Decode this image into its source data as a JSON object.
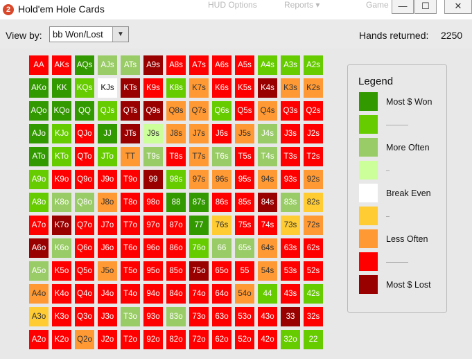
{
  "window": {
    "title": "Hold'em Hole Cards",
    "app_icon": "2",
    "icon": "pokertracker-icon",
    "bg_menu": [
      "HUD Options",
      "Reports ▾",
      "Game"
    ],
    "controls": {
      "minimize": "—",
      "maximize": "☐",
      "close": "✕"
    }
  },
  "toolbar": {
    "view_by_label": "View by:",
    "view_by_value": "bb Won/Lost",
    "dropdown_arrow": "▼",
    "hands_label": "Hands returned:",
    "hands_value": "2250"
  },
  "palette": {
    "DG": "#339900",
    "LG": "#66cc00",
    "PG": "#99cc66",
    "VPG": "#ccff99",
    "W": "#ffffff",
    "Y": "#ffcc33",
    "O": "#ff9933",
    "R": "#ff0000",
    "DR": "#990000"
  },
  "grid": {
    "rows": [
      [
        [
          "AA",
          "R"
        ],
        [
          "AKs",
          "R"
        ],
        [
          "AQs",
          "DG"
        ],
        [
          "AJs",
          "PG"
        ],
        [
          "ATs",
          "PG"
        ],
        [
          "A9s",
          "DR"
        ],
        [
          "A8s",
          "R"
        ],
        [
          "A7s",
          "R"
        ],
        [
          "A6s",
          "R"
        ],
        [
          "A5s",
          "R"
        ],
        [
          "A4s",
          "LG"
        ],
        [
          "A3s",
          "LG"
        ],
        [
          "A2s",
          "LG"
        ]
      ],
      [
        [
          "AKo",
          "DG"
        ],
        [
          "KK",
          "DG"
        ],
        [
          "KQs",
          "LG"
        ],
        [
          "KJs",
          "W"
        ],
        [
          "KTs",
          "DR"
        ],
        [
          "K9s",
          "R"
        ],
        [
          "K8s",
          "LG"
        ],
        [
          "K7s",
          "O"
        ],
        [
          "K6s",
          "R"
        ],
        [
          "K5s",
          "R"
        ],
        [
          "K4s",
          "DR"
        ],
        [
          "K3s",
          "O"
        ],
        [
          "K2s",
          "O"
        ]
      ],
      [
        [
          "AQo",
          "DG"
        ],
        [
          "KQo",
          "DG"
        ],
        [
          "QQ",
          "DG"
        ],
        [
          "QJs",
          "LG"
        ],
        [
          "QTs",
          "DR"
        ],
        [
          "Q9s",
          "DR"
        ],
        [
          "Q8s",
          "O"
        ],
        [
          "Q7s",
          "O"
        ],
        [
          "Q6s",
          "LG"
        ],
        [
          "Q5s",
          "R"
        ],
        [
          "Q4s",
          "O"
        ],
        [
          "Q3s",
          "R"
        ],
        [
          "Q2s",
          "R"
        ]
      ],
      [
        [
          "AJo",
          "DG"
        ],
        [
          "KJo",
          "LG"
        ],
        [
          "QJo",
          "R"
        ],
        [
          "JJ",
          "DG"
        ],
        [
          "JTs",
          "DR"
        ],
        [
          "J9s",
          "VPG"
        ],
        [
          "J8s",
          "O"
        ],
        [
          "J7s",
          "O"
        ],
        [
          "J6s",
          "R"
        ],
        [
          "J5s",
          "O"
        ],
        [
          "J4s",
          "PG"
        ],
        [
          "J3s",
          "R"
        ],
        [
          "J2s",
          "R"
        ]
      ],
      [
        [
          "ATo",
          "DG"
        ],
        [
          "KTo",
          "LG"
        ],
        [
          "QTo",
          "R"
        ],
        [
          "JTo",
          "LG"
        ],
        [
          "TT",
          "O"
        ],
        [
          "T9s",
          "PG"
        ],
        [
          "T8s",
          "R"
        ],
        [
          "T7s",
          "O"
        ],
        [
          "T6s",
          "PG"
        ],
        [
          "T5s",
          "R"
        ],
        [
          "T4s",
          "PG"
        ],
        [
          "T3s",
          "R"
        ],
        [
          "T2s",
          "R"
        ]
      ],
      [
        [
          "A9o",
          "LG"
        ],
        [
          "K9o",
          "R"
        ],
        [
          "Q9o",
          "R"
        ],
        [
          "J9o",
          "R"
        ],
        [
          "T9o",
          "R"
        ],
        [
          "99",
          "DR"
        ],
        [
          "98s",
          "LG"
        ],
        [
          "97s",
          "O"
        ],
        [
          "96s",
          "O"
        ],
        [
          "95s",
          "R"
        ],
        [
          "94s",
          "O"
        ],
        [
          "93s",
          "R"
        ],
        [
          "92s",
          "O"
        ]
      ],
      [
        [
          "A8o",
          "LG"
        ],
        [
          "K8o",
          "PG"
        ],
        [
          "Q8o",
          "PG"
        ],
        [
          "J8o",
          "O"
        ],
        [
          "T8o",
          "R"
        ],
        [
          "98o",
          "R"
        ],
        [
          "88",
          "DG"
        ],
        [
          "87s",
          "DG"
        ],
        [
          "86s",
          "R"
        ],
        [
          "85s",
          "R"
        ],
        [
          "84s",
          "DR"
        ],
        [
          "83s",
          "PG"
        ],
        [
          "82s",
          "Y"
        ]
      ],
      [
        [
          "A7o",
          "R"
        ],
        [
          "K7o",
          "DR"
        ],
        [
          "Q7o",
          "R"
        ],
        [
          "J7o",
          "R"
        ],
        [
          "T7o",
          "R"
        ],
        [
          "97o",
          "R"
        ],
        [
          "87o",
          "R"
        ],
        [
          "77",
          "DG"
        ],
        [
          "76s",
          "Y"
        ],
        [
          "75s",
          "R"
        ],
        [
          "74s",
          "R"
        ],
        [
          "73s",
          "Y"
        ],
        [
          "72s",
          "O"
        ]
      ],
      [
        [
          "A6o",
          "DR"
        ],
        [
          "K6o",
          "PG"
        ],
        [
          "Q6o",
          "R"
        ],
        [
          "J6o",
          "R"
        ],
        [
          "T6o",
          "R"
        ],
        [
          "96o",
          "R"
        ],
        [
          "86o",
          "R"
        ],
        [
          "76o",
          "LG"
        ],
        [
          "66",
          "PG"
        ],
        [
          "65s",
          "PG"
        ],
        [
          "64s",
          "O"
        ],
        [
          "63s",
          "R"
        ],
        [
          "62s",
          "R"
        ]
      ],
      [
        [
          "A5o",
          "PG"
        ],
        [
          "K5o",
          "R"
        ],
        [
          "Q5o",
          "R"
        ],
        [
          "J5o",
          "O"
        ],
        [
          "T5o",
          "R"
        ],
        [
          "95o",
          "R"
        ],
        [
          "85o",
          "R"
        ],
        [
          "75o",
          "DR"
        ],
        [
          "65o",
          "R"
        ],
        [
          "55",
          "R"
        ],
        [
          "54s",
          "O"
        ],
        [
          "53s",
          "R"
        ],
        [
          "52s",
          "R"
        ]
      ],
      [
        [
          "A4o",
          "O"
        ],
        [
          "K4o",
          "R"
        ],
        [
          "Q4o",
          "R"
        ],
        [
          "J4o",
          "R"
        ],
        [
          "T4o",
          "R"
        ],
        [
          "94o",
          "R"
        ],
        [
          "84o",
          "R"
        ],
        [
          "74o",
          "R"
        ],
        [
          "64o",
          "R"
        ],
        [
          "54o",
          "O"
        ],
        [
          "44",
          "LG"
        ],
        [
          "43s",
          "R"
        ],
        [
          "42s",
          "LG"
        ]
      ],
      [
        [
          "A3o",
          "Y"
        ],
        [
          "K3o",
          "R"
        ],
        [
          "Q3o",
          "R"
        ],
        [
          "J3o",
          "R"
        ],
        [
          "T3o",
          "PG"
        ],
        [
          "93o",
          "R"
        ],
        [
          "83o",
          "PG"
        ],
        [
          "73o",
          "R"
        ],
        [
          "63o",
          "R"
        ],
        [
          "53o",
          "R"
        ],
        [
          "43o",
          "R"
        ],
        [
          "33",
          "DR"
        ],
        [
          "32s",
          "R"
        ]
      ],
      [
        [
          "A2o",
          "R"
        ],
        [
          "K2o",
          "R"
        ],
        [
          "Q2o",
          "O"
        ],
        [
          "J2o",
          "R"
        ],
        [
          "T2o",
          "R"
        ],
        [
          "92o",
          "R"
        ],
        [
          "82o",
          "R"
        ],
        [
          "72o",
          "R"
        ],
        [
          "62o",
          "R"
        ],
        [
          "52o",
          "R"
        ],
        [
          "42o",
          "R"
        ],
        [
          "32o",
          "LG"
        ],
        [
          "22",
          "LG"
        ]
      ]
    ]
  },
  "legend": {
    "title": "Legend",
    "items": [
      {
        "label": "Most $ Won",
        "color": "DG"
      },
      {
        "label": "",
        "color": "LG",
        "dash": 32
      },
      {
        "label": "More Often",
        "color": "PG"
      },
      {
        "label": "",
        "color": "VPG",
        "dash": 5
      },
      {
        "label": "Break Even",
        "color": "W"
      },
      {
        "label": "",
        "color": "Y",
        "dash": 5
      },
      {
        "label": "Less Often",
        "color": "O"
      },
      {
        "label": "",
        "color": "R",
        "dash": 32
      },
      {
        "label": "Most $ Lost",
        "color": "DR"
      }
    ]
  }
}
